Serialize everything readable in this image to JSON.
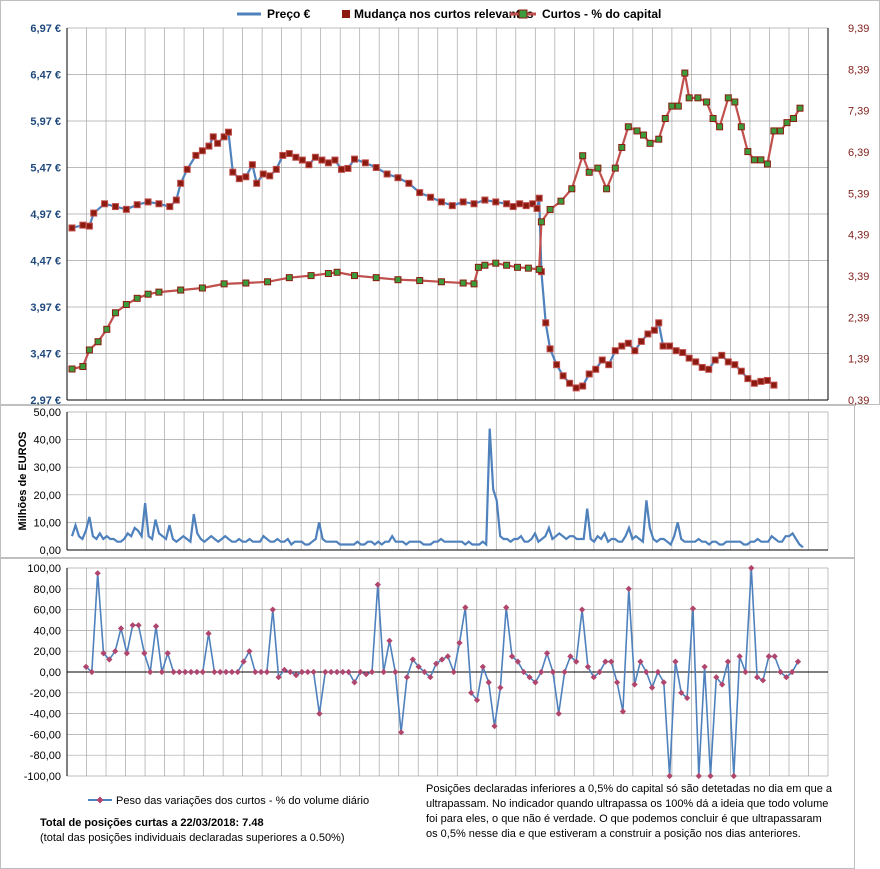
{
  "chart_data": [
    {
      "type": "line",
      "legend": [
        "Preço €",
        "Mudança nos curtos relevantes",
        "Curtos - % do capital"
      ],
      "legend_position": "top",
      "y_left_ticks": [
        "6,97 €",
        "6,47 €",
        "5,97 €",
        "5,47 €",
        "4,97 €",
        "4,47 €",
        "3,97 €",
        "3,47 €",
        "2,97 €"
      ],
      "y_left_range": [
        2.97,
        6.97
      ],
      "y_right_ticks": [
        "9,39",
        "8,39",
        "7,39",
        "6,39",
        "5,39",
        "4,39",
        "3,39",
        "2,39",
        "1,39",
        "0,39"
      ],
      "y_right_range": [
        0.39,
        9.39
      ],
      "n_points": 250,
      "series": [
        {
          "name": "Preço €",
          "axis": "left",
          "color": "#4f81bd",
          "points": [
            [
              0,
              4.82
            ],
            [
              5,
              4.85
            ],
            [
              8,
              4.84
            ],
            [
              10,
              4.98
            ],
            [
              15,
              5.08
            ],
            [
              20,
              5.05
            ],
            [
              25,
              5.02
            ],
            [
              30,
              5.07
            ],
            [
              35,
              5.1
            ],
            [
              40,
              5.08
            ],
            [
              45,
              5.05
            ],
            [
              48,
              5.12
            ],
            [
              50,
              5.3
            ],
            [
              53,
              5.45
            ],
            [
              57,
              5.6
            ],
            [
              60,
              5.65
            ],
            [
              63,
              5.7
            ],
            [
              65,
              5.8
            ],
            [
              67,
              5.73
            ],
            [
              70,
              5.8
            ],
            [
              72,
              5.85
            ],
            [
              74,
              5.42
            ],
            [
              77,
              5.35
            ],
            [
              80,
              5.37
            ],
            [
              83,
              5.5
            ],
            [
              85,
              5.3
            ],
            [
              88,
              5.4
            ],
            [
              91,
              5.38
            ],
            [
              94,
              5.45
            ],
            [
              97,
              5.6
            ],
            [
              100,
              5.62
            ],
            [
              103,
              5.58
            ],
            [
              106,
              5.55
            ],
            [
              109,
              5.5
            ],
            [
              112,
              5.58
            ],
            [
              115,
              5.55
            ],
            [
              118,
              5.52
            ],
            [
              121,
              5.55
            ],
            [
              124,
              5.45
            ],
            [
              127,
              5.46
            ],
            [
              130,
              5.56
            ],
            [
              135,
              5.52
            ],
            [
              140,
              5.47
            ],
            [
              145,
              5.4
            ],
            [
              150,
              5.36
            ],
            [
              155,
              5.3
            ],
            [
              160,
              5.2
            ],
            [
              165,
              5.15
            ],
            [
              170,
              5.1
            ],
            [
              175,
              5.06
            ],
            [
              180,
              5.1
            ],
            [
              185,
              5.08
            ],
            [
              190,
              5.12
            ],
            [
              195,
              5.1
            ],
            [
              200,
              5.08
            ],
            [
              203,
              5.05
            ],
            [
              206,
              5.08
            ],
            [
              209,
              5.06
            ],
            [
              212,
              5.08
            ],
            [
              214,
              5.03
            ],
            [
              215,
              5.14
            ],
            [
              216,
              4.35
            ],
            [
              218,
              3.8
            ],
            [
              220,
              3.52
            ],
            [
              223,
              3.35
            ],
            [
              226,
              3.23
            ],
            [
              229,
              3.15
            ],
            [
              232,
              3.1
            ],
            [
              235,
              3.12
            ],
            [
              238,
              3.25
            ],
            [
              241,
              3.3
            ],
            [
              244,
              3.4
            ],
            [
              247,
              3.35
            ],
            [
              250,
              3.5
            ],
            [
              253,
              3.55
            ],
            [
              256,
              3.58
            ],
            [
              259,
              3.5
            ],
            [
              262,
              3.6
            ],
            [
              265,
              3.68
            ],
            [
              268,
              3.72
            ],
            [
              270,
              3.8
            ],
            [
              272,
              3.55
            ],
            [
              275,
              3.55
            ],
            [
              278,
              3.5
            ],
            [
              281,
              3.48
            ],
            [
              284,
              3.42
            ],
            [
              287,
              3.38
            ],
            [
              290,
              3.32
            ],
            [
              293,
              3.3
            ],
            [
              296,
              3.4
            ],
            [
              299,
              3.45
            ],
            [
              302,
              3.38
            ],
            [
              305,
              3.35
            ],
            [
              308,
              3.28
            ],
            [
              311,
              3.2
            ],
            [
              314,
              3.15
            ],
            [
              317,
              3.17
            ],
            [
              320,
              3.18
            ],
            [
              323,
              3.13
            ]
          ]
        },
        {
          "name": "Curtos - % do capital",
          "axis": "right",
          "color": "#c0504d",
          "points": [
            [
              0,
              1.14
            ],
            [
              5,
              1.2
            ],
            [
              8,
              1.6
            ],
            [
              12,
              1.8
            ],
            [
              16,
              2.1
            ],
            [
              20,
              2.5
            ],
            [
              25,
              2.7
            ],
            [
              30,
              2.85
            ],
            [
              35,
              2.95
            ],
            [
              40,
              3.0
            ],
            [
              50,
              3.05
            ],
            [
              60,
              3.1
            ],
            [
              70,
              3.2
            ],
            [
              80,
              3.22
            ],
            [
              90,
              3.25
            ],
            [
              100,
              3.35
            ],
            [
              110,
              3.4
            ],
            [
              118,
              3.45
            ],
            [
              122,
              3.48
            ],
            [
              130,
              3.4
            ],
            [
              140,
              3.35
            ],
            [
              150,
              3.3
            ],
            [
              160,
              3.28
            ],
            [
              170,
              3.25
            ],
            [
              180,
              3.22
            ],
            [
              185,
              3.2
            ],
            [
              187,
              3.6
            ],
            [
              190,
              3.65
            ],
            [
              195,
              3.7
            ],
            [
              200,
              3.65
            ],
            [
              205,
              3.6
            ],
            [
              210,
              3.58
            ],
            [
              215,
              3.55
            ],
            [
              216,
              4.7
            ],
            [
              220,
              5.0
            ],
            [
              225,
              5.2
            ],
            [
              230,
              5.5
            ],
            [
              235,
              6.3
            ],
            [
              238,
              5.9
            ],
            [
              242,
              6.0
            ],
            [
              246,
              5.5
            ],
            [
              250,
              6.0
            ],
            [
              253,
              6.5
            ],
            [
              256,
              7.0
            ],
            [
              260,
              6.9
            ],
            [
              263,
              6.8
            ],
            [
              266,
              6.6
            ],
            [
              270,
              6.7
            ],
            [
              273,
              7.2
            ],
            [
              276,
              7.5
            ],
            [
              279,
              7.5
            ],
            [
              282,
              8.3
            ],
            [
              284,
              7.7
            ],
            [
              288,
              7.7
            ],
            [
              292,
              7.6
            ],
            [
              295,
              7.2
            ],
            [
              298,
              7.0
            ],
            [
              302,
              7.7
            ],
            [
              305,
              7.6
            ],
            [
              308,
              7.0
            ],
            [
              311,
              6.4
            ],
            [
              314,
              6.2
            ],
            [
              317,
              6.2
            ],
            [
              320,
              6.1
            ],
            [
              323,
              6.9
            ],
            [
              326,
              6.9
            ],
            [
              329,
              7.1
            ],
            [
              332,
              7.2
            ],
            [
              335,
              7.45
            ]
          ]
        }
      ]
    },
    {
      "type": "line",
      "ylabel": "Milhões de EUROS",
      "y_ticks": [
        "50,00",
        "40,00",
        "30,00",
        "20,00",
        "10,00",
        "0,00"
      ],
      "ylim": [
        0,
        50
      ],
      "series": [
        {
          "color": "#4f81bd",
          "values": [
            5,
            9,
            5,
            4,
            7,
            12,
            5,
            4,
            6,
            4,
            5,
            4,
            4,
            3,
            3,
            4,
            6,
            5,
            8,
            7,
            5,
            17,
            5,
            4,
            11,
            6,
            5,
            4,
            9,
            4,
            3,
            4,
            5,
            4,
            3,
            13,
            6,
            4,
            3,
            4,
            5,
            4,
            3,
            4,
            5,
            4,
            3,
            3,
            4,
            3,
            3,
            4,
            3,
            3,
            3,
            5,
            4,
            3,
            3,
            4,
            3,
            3,
            4,
            2,
            3,
            3,
            3,
            2,
            2,
            3,
            4,
            10,
            4,
            3,
            3,
            3,
            3,
            2,
            2,
            2,
            2,
            2,
            3,
            2,
            2,
            3,
            3,
            2,
            3,
            2,
            3,
            3,
            5,
            3,
            3,
            3,
            2,
            3,
            3,
            3,
            3,
            2,
            2,
            2,
            3,
            3,
            4,
            3,
            3,
            3,
            3,
            3,
            3,
            2,
            3,
            2,
            2,
            2,
            3,
            2,
            44,
            22,
            18,
            5,
            4,
            4,
            3,
            4,
            4,
            5,
            3,
            3,
            4,
            6,
            3,
            4,
            5,
            8,
            4,
            5,
            6,
            5,
            4,
            5,
            5,
            4,
            4,
            4,
            15,
            4,
            3,
            5,
            4,
            6,
            3,
            4,
            4,
            3,
            3,
            5,
            8,
            4,
            5,
            4,
            3,
            18,
            8,
            4,
            3,
            4,
            4,
            3,
            2,
            5,
            10,
            4,
            3,
            3,
            3,
            3,
            4,
            3,
            3,
            2,
            3,
            3,
            2,
            2,
            3,
            3,
            3,
            3,
            3,
            2,
            2,
            3,
            3,
            4,
            3,
            3,
            3,
            5,
            4,
            3,
            3,
            5,
            5,
            6,
            4,
            2,
            1
          ]
        }
      ]
    },
    {
      "type": "line",
      "legend": [
        "Peso das variações dos curtos - % do volume diário"
      ],
      "legend_position": "bottom-left",
      "y_ticks": [
        "100,00",
        "80,00",
        "60,00",
        "40,00",
        "20,00",
        "0,00",
        "-20,00",
        "-40,00",
        "-60,00",
        "-80,00",
        "-100,00"
      ],
      "ylim": [
        -100,
        100
      ],
      "series": [
        {
          "name": "Peso das variações dos curtos - % do volume diário",
          "color": "#4f81bd",
          "values": [
            5,
            0,
            95,
            18,
            12,
            20,
            42,
            18,
            45,
            45,
            18,
            0,
            44,
            0,
            18,
            0,
            0,
            0,
            0,
            0,
            0,
            37,
            0,
            0,
            0,
            0,
            0,
            10,
            20,
            0,
            0,
            0,
            60,
            -5,
            2,
            0,
            -3,
            0,
            0,
            0,
            -40,
            0,
            0,
            0,
            0,
            0,
            -10,
            0,
            -2,
            0,
            84,
            0,
            30,
            0,
            -58,
            -5,
            12,
            5,
            0,
            -5,
            8,
            12,
            15,
            0,
            28,
            62,
            -20,
            -27,
            5,
            -10,
            -52,
            -15,
            62,
            15,
            10,
            0,
            -5,
            -10,
            0,
            18,
            0,
            -40,
            0,
            15,
            10,
            60,
            5,
            -5,
            0,
            10,
            10,
            -10,
            -38,
            80,
            -12,
            10,
            0,
            -15,
            0,
            -10,
            -100,
            10,
            -20,
            -25,
            61,
            -100,
            5,
            -100,
            -5,
            -12,
            10,
            -100,
            15,
            0,
            100,
            -5,
            -8,
            15,
            15,
            0,
            -5,
            0,
            10
          ]
        }
      ]
    }
  ],
  "notes": {
    "total": "Total de posições curtas a 22/03/2018: 7.48",
    "total_sub": "(total das posições individuais declaradas superiores a 0.50%)",
    "footnote": "Posições declaradas inferiores a 0,5% do capital só são detetadas no dia em que a ultrapassam.  No indicador quando ultrapassa os 100% dá a ideia que todo volume foi para eles, o que não é verdade.  O que podemos concluir é que ultrapassaram os 0,5% nesse dia e que estiveram a construir a posição nos dias anteriores."
  }
}
